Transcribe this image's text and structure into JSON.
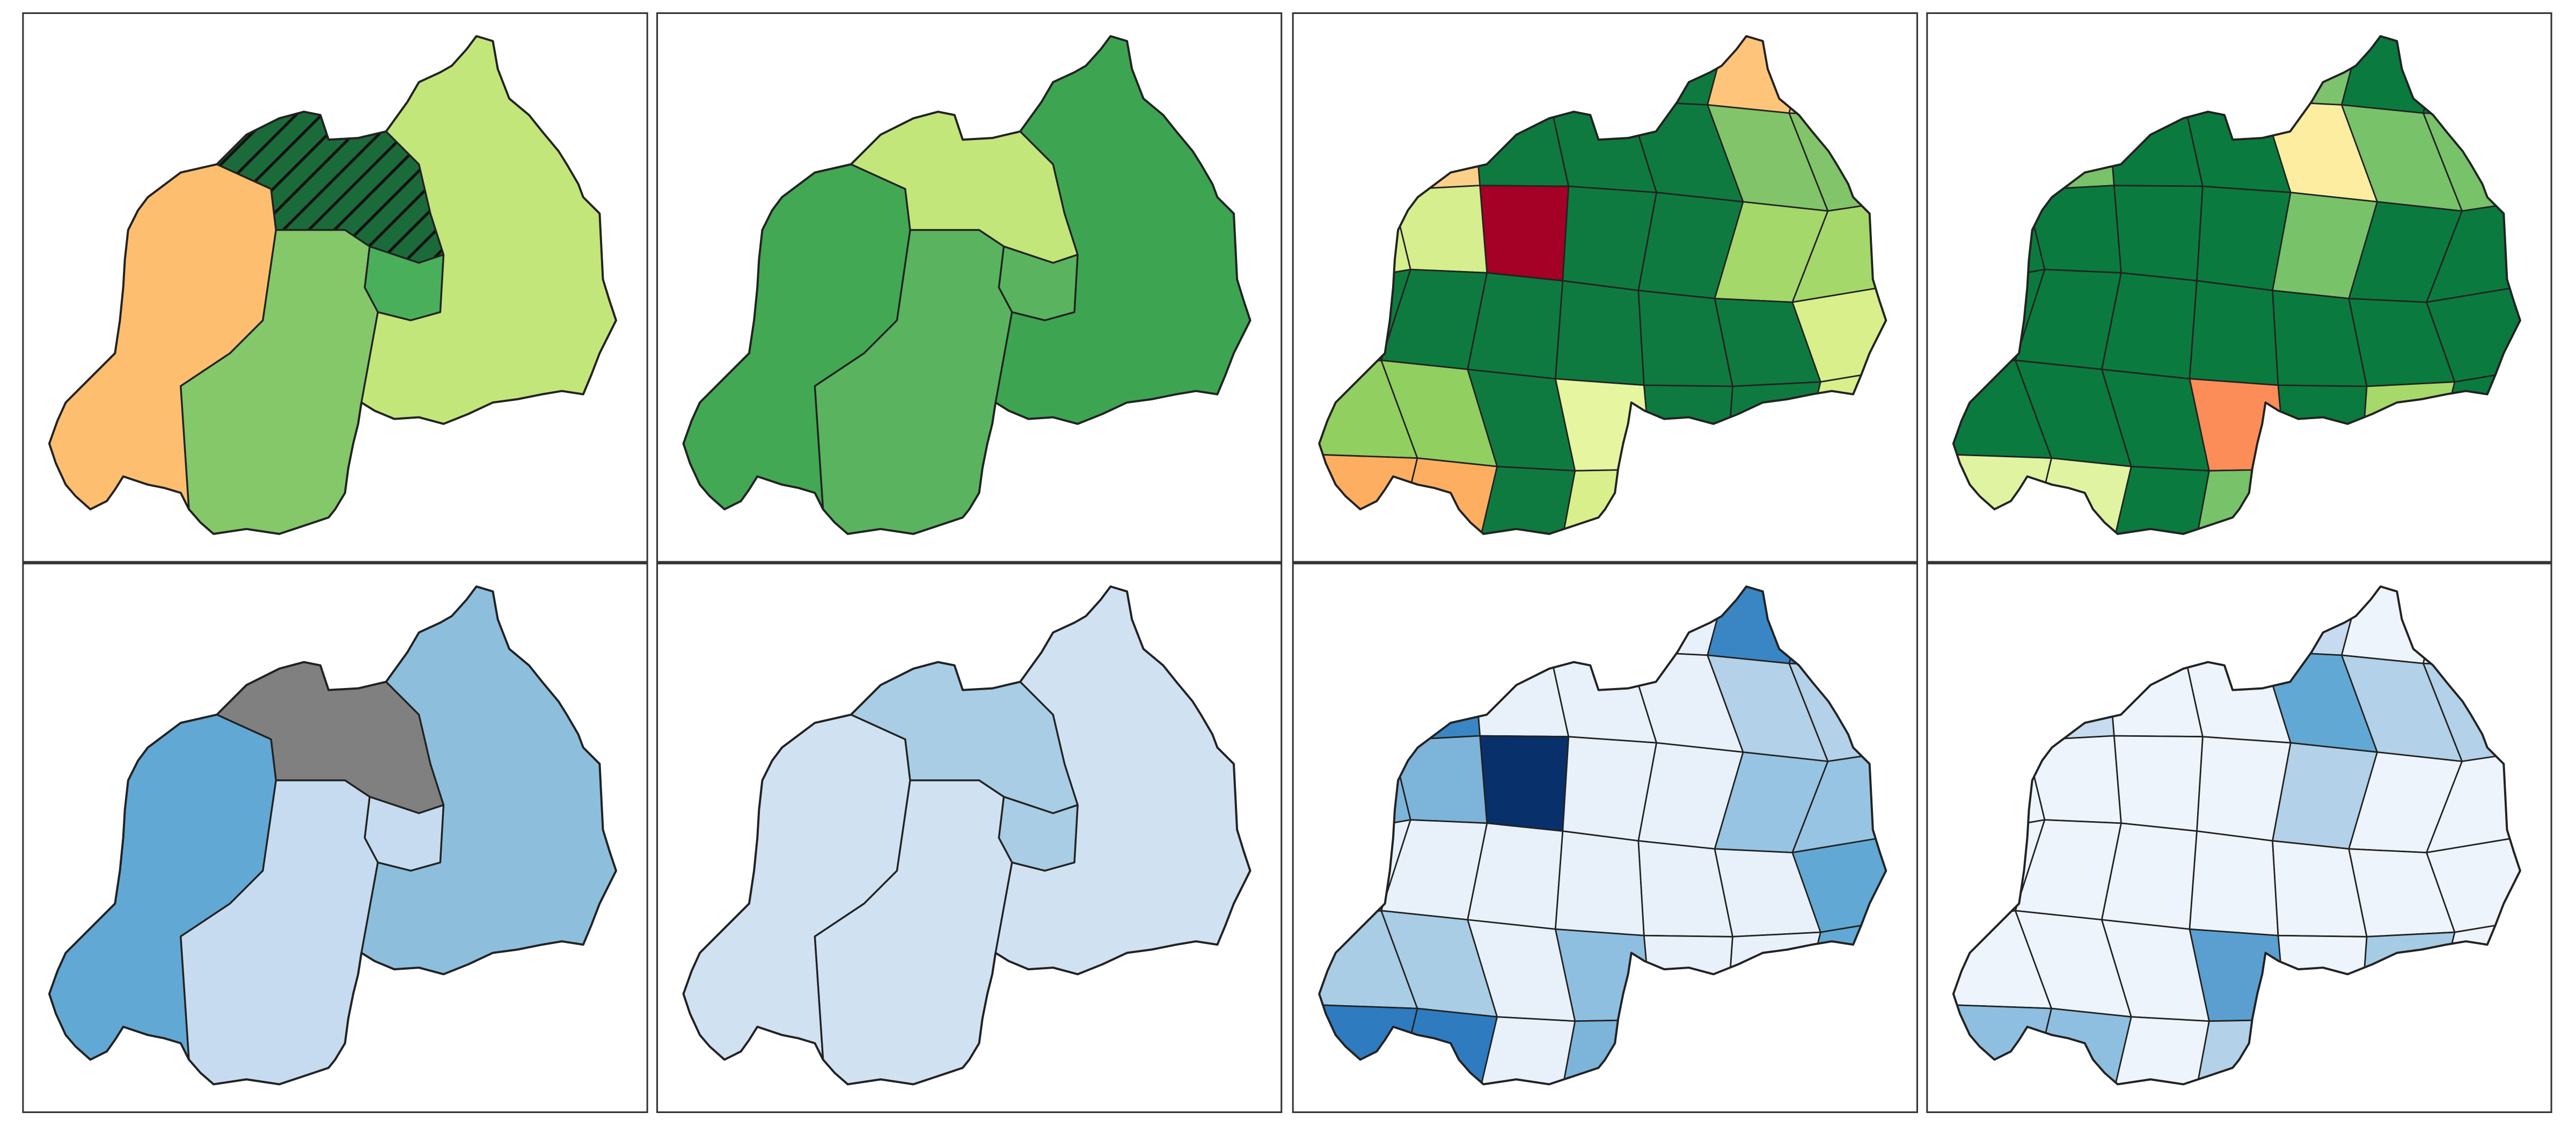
{
  "panels": [
    {
      "kind": "provinces",
      "fills": [
        "#fdbf6f",
        "#1b6b3a",
        "#4aaf5a",
        "#84c86a",
        "#c3e67a"
      ],
      "hatch": [
        false,
        true,
        false,
        false,
        false
      ]
    },
    {
      "kind": "provinces",
      "fills": [
        "#43a853",
        "#c3e67a",
        "#5ab45f",
        "#5ab45f",
        "#3da552"
      ],
      "hatch": [
        false,
        false,
        false,
        false,
        false
      ]
    },
    {
      "kind": "districts",
      "fills": [
        "#0f7a3f",
        "#0f7a3f",
        "#0f7a3f",
        "#0f7a3f",
        "#0f7a3f",
        "#fec57a",
        "#fec57a",
        "#fdd08a",
        "#fdd08a",
        "#0f7a3f",
        "#0f7a3f",
        "#0f7a3f",
        "#82c46a",
        "#82c46a",
        "#d7ee8e",
        "#d7ee8e",
        "#a50026",
        "#0f7a3f",
        "#0f7a3f",
        "#a5d86a",
        "#a5d86a",
        "#0f7a3f",
        "#0f7a3f",
        "#0f7a3f",
        "#0f7a3f",
        "#0f7a3f",
        "#0f7a3f",
        "#d9ef8b",
        "#91cf60",
        "#91cf60",
        "#0f7a3f",
        "#e6f5a0",
        "#0f7a3f",
        "#0f7a3f",
        "#d9ef8b",
        "#fdae61",
        "#fdae61",
        "#0f7a3f",
        "#d9ef8b",
        "#d9ef8b",
        "#d9ef8b",
        "#d9ef8b"
      ]
    },
    {
      "kind": "districts",
      "fills": [
        "#0b7a3e",
        "#0b7a3e",
        "#0b7a3e",
        "#0b7a3e",
        "#7dc36d",
        "#0b7a3e",
        "#0b7a3e",
        "#0b7a3e",
        "#78c26a",
        "#0b7a3e",
        "#0b7a3e",
        "#fdeda0",
        "#78c26a",
        "#78c26a",
        "#0b7a3e",
        "#0b7a3e",
        "#0b7a3e",
        "#0b7a3e",
        "#78c26a",
        "#0b7a3e",
        "#0b7a3e",
        "#0b7a3e",
        "#0b7a3e",
        "#0b7a3e",
        "#0b7a3e",
        "#0b7a3e",
        "#0b7a3e",
        "#0b7a3e",
        "#0b7a3e",
        "#0b7a3e",
        "#0b7a3e",
        "#fc8d59",
        "#0b7a3e",
        "#a6d96a",
        "#0b7a3e",
        "#e0f3a0",
        "#e0f3a0",
        "#0b7a3e",
        "#78c26a",
        "#0b7a3e",
        "#a6d96a",
        "#0b7a3e"
      ]
    },
    {
      "kind": "provinces",
      "fills": [
        "#62a8d4",
        "#808080",
        "#c6dbef",
        "#c6dbef",
        "#8dbfdd"
      ],
      "hatch": [
        false,
        false,
        false,
        false,
        false
      ]
    },
    {
      "kind": "provinces",
      "fills": [
        "#d0e1f2",
        "#a8cde5",
        "#a8cde5",
        "#d0e1f2",
        "#d0e1f2"
      ],
      "hatch": [
        false,
        false,
        false,
        false,
        false
      ]
    },
    {
      "kind": "districts",
      "fills": [
        "#e8f1fa",
        "#e8f1fa",
        "#e8f1fa",
        "#e8f1fa",
        "#e8f1fa",
        "#3a86c4",
        "#3a86c4",
        "#3a86c4",
        "#3a86c4",
        "#e8f1fa",
        "#e8f1fa",
        "#e8f1fa",
        "#b3d1e8",
        "#b3d1e8",
        "#7db4da",
        "#7db4da",
        "#08306b",
        "#e8f1fa",
        "#e8f1fa",
        "#97c4e2",
        "#97c4e2",
        "#e8f1fa",
        "#e8f1fa",
        "#e8f1fa",
        "#e8f1fa",
        "#e8f1fa",
        "#e8f1fa",
        "#62a8d4",
        "#a9cde5",
        "#a9cde5",
        "#e8f1fa",
        "#8fbfe0",
        "#e8f1fa",
        "#e8f1fa",
        "#62a8d4",
        "#2f7bbf",
        "#2f7bbf",
        "#e8f1fa",
        "#7db4da",
        "#7db4da",
        "#e8f1fa",
        "#e8f1fa"
      ]
    },
    {
      "kind": "districts",
      "fills": [
        "#eef4fb",
        "#eef4fb",
        "#eef4fb",
        "#c6dbef",
        "#c6dbef",
        "#eef4fb",
        "#eef4fb",
        "#eef4fb",
        "#c6dbef",
        "#eef4fb",
        "#eef4fb",
        "#62a8d4",
        "#b3d1e8",
        "#b3d1e8",
        "#eef4fb",
        "#eef4fb",
        "#eef4fb",
        "#eef4fb",
        "#b3d1e8",
        "#eef4fb",
        "#eef4fb",
        "#eef4fb",
        "#eef4fb",
        "#eef4fb",
        "#eef4fb",
        "#eef4fb",
        "#eef4fb",
        "#eef4fb",
        "#eef4fb",
        "#eef4fb",
        "#eef4fb",
        "#5a9fd0",
        "#eef4fb",
        "#a6cbe4",
        "#eef4fb",
        "#8fbfe0",
        "#8fbfe0",
        "#eef4fb",
        "#b3d1e8",
        "#eef4fb",
        "#eef4fb",
        "#eef4fb"
      ]
    }
  ]
}
